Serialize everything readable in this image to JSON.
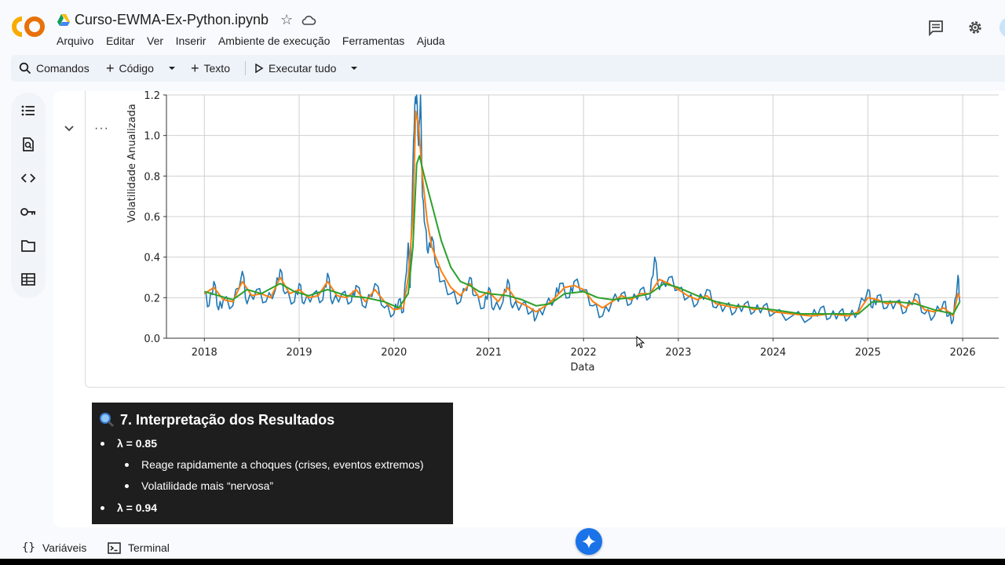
{
  "app": {
    "logo_text": "CO",
    "title": "Curso-EWMA-Ex-Python.ipynb"
  },
  "menu": [
    "Arquivo",
    "Editar",
    "Ver",
    "Inserir",
    "Ambiente de execução",
    "Ferramentas",
    "Ajuda"
  ],
  "toolbar": {
    "commands": "Comandos",
    "code": "Código",
    "text": "Texto",
    "run_all": "Executar tudo"
  },
  "sidebar_icons": [
    "table-of-contents-icon",
    "find-replace-icon",
    "code-snippets-icon",
    "secrets-key-icon",
    "files-folder-icon",
    "data-table-icon"
  ],
  "chart_data": {
    "type": "line",
    "xlabel": "Data",
    "ylabel": "Volatilidade Anualizada",
    "x_ticks": [
      "2018",
      "2019",
      "2020",
      "2021",
      "2022",
      "2023",
      "2024",
      "2025",
      "2026"
    ],
    "y_ticks": [
      "0.0",
      "0.2",
      "0.4",
      "0.6",
      "0.8",
      "1.0",
      "1.2"
    ],
    "xlim": [
      2017.6,
      2026.38
    ],
    "ylim": [
      0,
      1.2
    ],
    "grid": true,
    "colors": {
      "raw": "#1f77b4",
      "fast": "#ff7f0e",
      "slow": "#2ca02c"
    },
    "series": [
      {
        "color": "#1f77b4",
        "points": [
          [
            2018.0,
            0.22
          ],
          [
            2018.05,
            0.16
          ],
          [
            2018.1,
            0.28
          ],
          [
            2018.15,
            0.14
          ],
          [
            2018.2,
            0.19
          ],
          [
            2018.3,
            0.16
          ],
          [
            2018.4,
            0.33
          ],
          [
            2018.45,
            0.17
          ],
          [
            2018.55,
            0.24
          ],
          [
            2018.65,
            0.18
          ],
          [
            2018.75,
            0.24
          ],
          [
            2018.8,
            0.34
          ],
          [
            2018.85,
            0.22
          ],
          [
            2018.95,
            0.18
          ],
          [
            2019.0,
            0.27
          ],
          [
            2019.05,
            0.17
          ],
          [
            2019.15,
            0.22
          ],
          [
            2019.25,
            0.19
          ],
          [
            2019.3,
            0.32
          ],
          [
            2019.35,
            0.17
          ],
          [
            2019.45,
            0.22
          ],
          [
            2019.55,
            0.18
          ],
          [
            2019.6,
            0.26
          ],
          [
            2019.7,
            0.15
          ],
          [
            2019.8,
            0.27
          ],
          [
            2019.9,
            0.15
          ],
          [
            2020.0,
            0.12
          ],
          [
            2020.05,
            0.19
          ],
          [
            2020.1,
            0.13
          ],
          [
            2020.15,
            0.47
          ],
          [
            2020.17,
            0.25
          ],
          [
            2020.2,
            0.85
          ],
          [
            2020.22,
            1.15
          ],
          [
            2020.24,
            1.2
          ],
          [
            2020.26,
            0.95
          ],
          [
            2020.28,
            1.2
          ],
          [
            2020.3,
            0.7
          ],
          [
            2020.33,
            0.55
          ],
          [
            2020.36,
            0.42
          ],
          [
            2020.4,
            0.5
          ],
          [
            2020.45,
            0.35
          ],
          [
            2020.5,
            0.28
          ],
          [
            2020.6,
            0.22
          ],
          [
            2020.7,
            0.18
          ],
          [
            2020.8,
            0.3
          ],
          [
            2020.85,
            0.21
          ],
          [
            2020.95,
            0.15
          ],
          [
            2021.0,
            0.25
          ],
          [
            2021.05,
            0.14
          ],
          [
            2021.15,
            0.18
          ],
          [
            2021.2,
            0.29
          ],
          [
            2021.25,
            0.15
          ],
          [
            2021.35,
            0.17
          ],
          [
            2021.45,
            0.13
          ],
          [
            2021.5,
            0.1
          ],
          [
            2021.6,
            0.16
          ],
          [
            2021.7,
            0.2
          ],
          [
            2021.75,
            0.27
          ],
          [
            2021.85,
            0.2
          ],
          [
            2021.9,
            0.28
          ],
          [
            2022.0,
            0.24
          ],
          [
            2022.1,
            0.16
          ],
          [
            2022.2,
            0.11
          ],
          [
            2022.3,
            0.18
          ],
          [
            2022.4,
            0.22
          ],
          [
            2022.5,
            0.17
          ],
          [
            2022.6,
            0.24
          ],
          [
            2022.7,
            0.2
          ],
          [
            2022.75,
            0.4
          ],
          [
            2022.8,
            0.24
          ],
          [
            2022.9,
            0.3
          ],
          [
            2023.0,
            0.24
          ],
          [
            2023.1,
            0.2
          ],
          [
            2023.2,
            0.17
          ],
          [
            2023.3,
            0.24
          ],
          [
            2023.4,
            0.15
          ],
          [
            2023.5,
            0.16
          ],
          [
            2023.6,
            0.13
          ],
          [
            2023.7,
            0.17
          ],
          [
            2023.8,
            0.13
          ],
          [
            2023.9,
            0.16
          ],
          [
            2024.0,
            0.12
          ],
          [
            2024.2,
            0.11
          ],
          [
            2024.4,
            0.1
          ],
          [
            2024.5,
            0.15
          ],
          [
            2024.6,
            0.1
          ],
          [
            2024.7,
            0.13
          ],
          [
            2024.8,
            0.1
          ],
          [
            2024.9,
            0.14
          ],
          [
            2025.0,
            0.24
          ],
          [
            2025.05,
            0.15
          ],
          [
            2025.1,
            0.21
          ],
          [
            2025.2,
            0.15
          ],
          [
            2025.3,
            0.18
          ],
          [
            2025.4,
            0.13
          ],
          [
            2025.5,
            0.22
          ],
          [
            2025.6,
            0.12
          ],
          [
            2025.7,
            0.11
          ],
          [
            2025.8,
            0.18
          ],
          [
            2025.85,
            0.11
          ],
          [
            2025.9,
            0.09
          ],
          [
            2025.95,
            0.31
          ],
          [
            2025.97,
            0.18
          ]
        ]
      },
      {
        "color": "#ff7f0e",
        "points": [
          [
            2018.0,
            0.22
          ],
          [
            2018.1,
            0.25
          ],
          [
            2018.2,
            0.19
          ],
          [
            2018.3,
            0.18
          ],
          [
            2018.4,
            0.28
          ],
          [
            2018.5,
            0.21
          ],
          [
            2018.6,
            0.22
          ],
          [
            2018.7,
            0.2
          ],
          [
            2018.8,
            0.3
          ],
          [
            2018.9,
            0.22
          ],
          [
            2019.0,
            0.24
          ],
          [
            2019.1,
            0.2
          ],
          [
            2019.2,
            0.21
          ],
          [
            2019.3,
            0.28
          ],
          [
            2019.4,
            0.21
          ],
          [
            2019.5,
            0.2
          ],
          [
            2019.6,
            0.24
          ],
          [
            2019.7,
            0.18
          ],
          [
            2019.8,
            0.24
          ],
          [
            2019.9,
            0.18
          ],
          [
            2020.0,
            0.14
          ],
          [
            2020.1,
            0.15
          ],
          [
            2020.15,
            0.3
          ],
          [
            2020.2,
            0.6
          ],
          [
            2020.23,
            1.12
          ],
          [
            2020.26,
            1.05
          ],
          [
            2020.3,
            0.8
          ],
          [
            2020.35,
            0.58
          ],
          [
            2020.4,
            0.45
          ],
          [
            2020.5,
            0.33
          ],
          [
            2020.6,
            0.25
          ],
          [
            2020.7,
            0.21
          ],
          [
            2020.8,
            0.27
          ],
          [
            2020.9,
            0.2
          ],
          [
            2021.0,
            0.23
          ],
          [
            2021.1,
            0.18
          ],
          [
            2021.2,
            0.25
          ],
          [
            2021.3,
            0.18
          ],
          [
            2021.4,
            0.16
          ],
          [
            2021.5,
            0.13
          ],
          [
            2021.6,
            0.16
          ],
          [
            2021.7,
            0.2
          ],
          [
            2021.8,
            0.25
          ],
          [
            2021.9,
            0.26
          ],
          [
            2022.0,
            0.24
          ],
          [
            2022.1,
            0.18
          ],
          [
            2022.2,
            0.15
          ],
          [
            2022.3,
            0.18
          ],
          [
            2022.4,
            0.21
          ],
          [
            2022.5,
            0.19
          ],
          [
            2022.6,
            0.22
          ],
          [
            2022.7,
            0.22
          ],
          [
            2022.8,
            0.29
          ],
          [
            2022.9,
            0.27
          ],
          [
            2023.0,
            0.24
          ],
          [
            2023.1,
            0.21
          ],
          [
            2023.2,
            0.19
          ],
          [
            2023.3,
            0.21
          ],
          [
            2023.4,
            0.17
          ],
          [
            2023.5,
            0.16
          ],
          [
            2023.6,
            0.15
          ],
          [
            2023.7,
            0.16
          ],
          [
            2023.8,
            0.14
          ],
          [
            2023.9,
            0.15
          ],
          [
            2024.0,
            0.13
          ],
          [
            2024.2,
            0.12
          ],
          [
            2024.4,
            0.11
          ],
          [
            2024.6,
            0.12
          ],
          [
            2024.8,
            0.11
          ],
          [
            2024.9,
            0.13
          ],
          [
            2025.0,
            0.2
          ],
          [
            2025.1,
            0.19
          ],
          [
            2025.2,
            0.17
          ],
          [
            2025.3,
            0.18
          ],
          [
            2025.4,
            0.15
          ],
          [
            2025.5,
            0.19
          ],
          [
            2025.6,
            0.14
          ],
          [
            2025.7,
            0.13
          ],
          [
            2025.8,
            0.15
          ],
          [
            2025.9,
            0.11
          ],
          [
            2025.95,
            0.22
          ],
          [
            2025.97,
            0.2
          ]
        ]
      },
      {
        "color": "#2ca02c",
        "points": [
          [
            2018.0,
            0.23
          ],
          [
            2018.15,
            0.21
          ],
          [
            2018.3,
            0.19
          ],
          [
            2018.45,
            0.24
          ],
          [
            2018.6,
            0.22
          ],
          [
            2018.8,
            0.27
          ],
          [
            2018.95,
            0.23
          ],
          [
            2019.1,
            0.21
          ],
          [
            2019.3,
            0.24
          ],
          [
            2019.5,
            0.21
          ],
          [
            2019.7,
            0.2
          ],
          [
            2019.9,
            0.18
          ],
          [
            2020.05,
            0.15
          ],
          [
            2020.15,
            0.22
          ],
          [
            2020.2,
            0.45
          ],
          [
            2020.24,
            0.86
          ],
          [
            2020.27,
            0.9
          ],
          [
            2020.32,
            0.8
          ],
          [
            2020.4,
            0.66
          ],
          [
            2020.5,
            0.48
          ],
          [
            2020.6,
            0.35
          ],
          [
            2020.7,
            0.28
          ],
          [
            2020.8,
            0.26
          ],
          [
            2020.9,
            0.23
          ],
          [
            2021.0,
            0.22
          ],
          [
            2021.2,
            0.21
          ],
          [
            2021.35,
            0.19
          ],
          [
            2021.5,
            0.16
          ],
          [
            2021.65,
            0.17
          ],
          [
            2021.8,
            0.22
          ],
          [
            2022.0,
            0.23
          ],
          [
            2022.15,
            0.2
          ],
          [
            2022.3,
            0.19
          ],
          [
            2022.5,
            0.2
          ],
          [
            2022.7,
            0.22
          ],
          [
            2022.85,
            0.27
          ],
          [
            2023.0,
            0.25
          ],
          [
            2023.2,
            0.21
          ],
          [
            2023.4,
            0.18
          ],
          [
            2023.6,
            0.16
          ],
          [
            2023.8,
            0.15
          ],
          [
            2024.0,
            0.14
          ],
          [
            2024.3,
            0.12
          ],
          [
            2024.6,
            0.12
          ],
          [
            2024.9,
            0.12
          ],
          [
            2025.05,
            0.18
          ],
          [
            2025.3,
            0.18
          ],
          [
            2025.5,
            0.17
          ],
          [
            2025.7,
            0.14
          ],
          [
            2025.9,
            0.12
          ],
          [
            2025.97,
            0.18
          ]
        ]
      }
    ]
  },
  "markdown": {
    "heading": "7. Interpretação dos Resultados",
    "items": [
      {
        "text": "λ = 0.85",
        "level": 1
      },
      {
        "text": "Reage rapidamente a choques (crises, eventos extremos)",
        "level": 2
      },
      {
        "text": "Volatilidade mais “nervosa”",
        "level": 2
      },
      {
        "text": "λ = 0.94",
        "level": 1
      }
    ]
  },
  "bottom": {
    "variables": "Variáveis",
    "terminal": "Terminal"
  }
}
